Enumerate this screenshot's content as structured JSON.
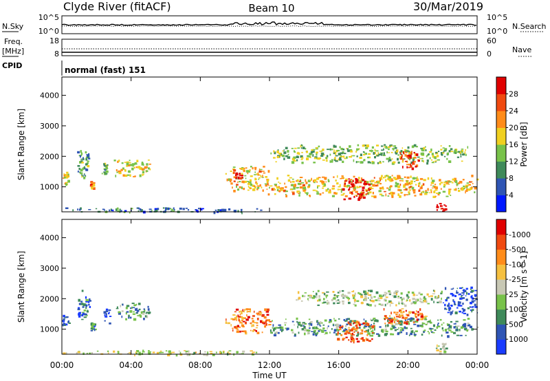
{
  "header": {
    "station": "Clyde River (fitACF)",
    "beam": "Beam 10",
    "date": "30/Mar/2019"
  },
  "panels": {
    "nsky": {
      "label": "N.Sky",
      "left_top": "10^5",
      "left_bottom": "10^0",
      "right_top": "10^5",
      "right_bottom": "10^0",
      "right_label": "N.Search"
    },
    "freq": {
      "label_line1": "Freq.",
      "label_line2": "[MHz]",
      "left_top": "18",
      "left_bottom": "8",
      "right_top": "60",
      "right_bottom": "0",
      "right_label": "Nave"
    },
    "cpid": {
      "label": "CPID",
      "value": "normal (fast) 151"
    }
  },
  "chart_data": [
    {
      "type": "heatmap",
      "title": "",
      "xlabel": "",
      "ylabel": "Slant Range [km]",
      "xlim": [
        "00:00",
        "24:00"
      ],
      "ylim": [
        180,
        4600
      ],
      "yticks": [
        1000,
        2000,
        3000,
        4000
      ],
      "colorbar": {
        "label": "Power [dB]",
        "ticks": [
          "4",
          "8",
          "12",
          "16",
          "20",
          "24",
          "28"
        ],
        "colors": [
          "#0018ff",
          "#2f55b4",
          "#3f8a5a",
          "#78c24a",
          "#f0d020",
          "#ff8c1a",
          "#f04a10",
          "#e00000"
        ]
      },
      "regions": [
        {
          "t0": 0.0,
          "t1": 0.4,
          "r0": 1100,
          "r1": 1500,
          "level": 0.55
        },
        {
          "t0": 0.8,
          "t1": 1.6,
          "r0": 1300,
          "r1": 2300,
          "level": 0.35
        },
        {
          "t0": 1.6,
          "t1": 1.9,
          "r0": 950,
          "r1": 1250,
          "level": 0.75
        },
        {
          "t0": 2.3,
          "t1": 2.6,
          "r0": 1400,
          "r1": 1800,
          "level": 0.4
        },
        {
          "t0": 3.0,
          "t1": 5.2,
          "r0": 1350,
          "r1": 1900,
          "level": 0.55
        },
        {
          "t0": 9.4,
          "t1": 12.0,
          "r0": 900,
          "r1": 1700,
          "level": 0.6
        },
        {
          "t0": 9.9,
          "t1": 10.4,
          "r0": 1000,
          "r1": 1500,
          "level": 0.95
        },
        {
          "t0": 11.8,
          "t1": 24.0,
          "r0": 700,
          "r1": 1400,
          "level": 0.6
        },
        {
          "t0": 16.2,
          "t1": 17.8,
          "r0": 600,
          "r1": 1300,
          "level": 1.0
        },
        {
          "t0": 12.0,
          "t1": 23.5,
          "r0": 1800,
          "r1": 2400,
          "level": 0.45
        },
        {
          "t0": 19.5,
          "t1": 20.6,
          "r0": 1600,
          "r1": 2200,
          "level": 0.85
        },
        {
          "t0": 21.6,
          "t1": 22.2,
          "r0": 180,
          "r1": 500,
          "level": 1.0
        },
        {
          "t0": 0.0,
          "t1": 11.5,
          "r0": 180,
          "r1": 330,
          "level": 0.25
        }
      ]
    },
    {
      "type": "heatmap",
      "title": "",
      "xlabel": "Time UT",
      "ylabel": "Slant Range [km]",
      "xlim": [
        "00:00",
        "24:00"
      ],
      "ylim": [
        180,
        4600
      ],
      "xticks": [
        "00:00",
        "04:00",
        "08:00",
        "12:00",
        "16:00",
        "20:00",
        "00:00"
      ],
      "yticks": [
        1000,
        2000,
        3000,
        4000
      ],
      "colorbar": {
        "label": "Velocity [m s^-1]",
        "ticks": [
          "1000",
          "500",
          "100",
          "25",
          "-25",
          "-100",
          "-500",
          "-1000"
        ],
        "colors": [
          "#1a3cff",
          "#2f55b4",
          "#3f8a5a",
          "#78c24a",
          "#c8c8b4",
          "#f5c040",
          "#ff8c1a",
          "#f04a10",
          "#e00000"
        ]
      },
      "regions": [
        {
          "t0": 0.0,
          "t1": 0.4,
          "r0": 1100,
          "r1": 1500,
          "level": 0.15
        },
        {
          "t0": 0.8,
          "t1": 1.6,
          "r0": 1300,
          "r1": 2300,
          "level": 0.2
        },
        {
          "t0": 1.6,
          "t1": 1.9,
          "r0": 950,
          "r1": 1250,
          "level": 0.25
        },
        {
          "t0": 2.3,
          "t1": 2.8,
          "r0": 1200,
          "r1": 1700,
          "level": 0.05
        },
        {
          "t0": 3.0,
          "t1": 5.2,
          "r0": 1350,
          "r1": 1900,
          "level": 0.3
        },
        {
          "t0": 9.4,
          "t1": 12.0,
          "r0": 900,
          "r1": 1700,
          "level": 0.75
        },
        {
          "t0": 12.0,
          "t1": 24.0,
          "r0": 800,
          "r1": 1400,
          "level": 0.3
        },
        {
          "t0": 15.8,
          "t1": 18.0,
          "r0": 600,
          "r1": 1300,
          "level": 0.8
        },
        {
          "t0": 13.5,
          "t1": 22.0,
          "r0": 1800,
          "r1": 2300,
          "level": 0.45
        },
        {
          "t0": 18.5,
          "t1": 21.0,
          "r0": 1200,
          "r1": 1700,
          "level": 0.75
        },
        {
          "t0": 22.0,
          "t1": 24.0,
          "r0": 1500,
          "r1": 2400,
          "level": 0.1
        },
        {
          "t0": 21.6,
          "t1": 22.2,
          "r0": 180,
          "r1": 600,
          "level": 0.45
        },
        {
          "t0": 0.0,
          "t1": 11.5,
          "r0": 180,
          "r1": 330,
          "level": 0.5
        }
      ]
    }
  ]
}
